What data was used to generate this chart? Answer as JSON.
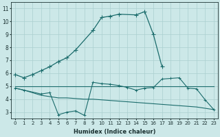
{
  "xlabel": "Humidex (Indice chaleur)",
  "bg_color": "#cce8e8",
  "grid_color": "#aacfcf",
  "line_color": "#1a6b6b",
  "ylim": [
    2.5,
    11.5
  ],
  "xlim": [
    -0.5,
    23.5
  ],
  "yticks": [
    3,
    4,
    5,
    6,
    7,
    8,
    9,
    10,
    11
  ],
  "xticks": [
    0,
    1,
    2,
    3,
    4,
    5,
    6,
    7,
    8,
    9,
    10,
    11,
    12,
    13,
    14,
    15,
    16,
    17,
    18,
    19,
    20,
    21,
    22,
    23
  ],
  "line1_x": [
    0,
    1,
    2,
    3,
    4,
    5,
    6,
    7,
    9,
    10,
    11,
    12,
    14,
    15,
    16,
    17
  ],
  "line1_y": [
    5.9,
    5.65,
    5.9,
    6.2,
    6.5,
    6.9,
    7.2,
    7.8,
    9.3,
    10.3,
    10.4,
    10.55,
    10.5,
    10.75,
    9.0,
    6.5
  ],
  "line2_x": [
    0,
    1,
    2,
    3,
    4,
    5,
    6,
    7,
    8,
    9,
    10,
    11,
    12,
    13,
    14,
    15,
    16,
    17,
    18,
    19,
    20,
    21,
    22,
    23
  ],
  "line2_y": [
    5.0,
    5.0,
    5.0,
    5.0,
    5.0,
    5.0,
    5.0,
    5.0,
    5.0,
    5.0,
    5.0,
    5.0,
    5.0,
    5.0,
    5.0,
    5.0,
    5.0,
    5.0,
    5.0,
    5.0,
    5.0,
    5.0,
    5.0,
    5.0
  ],
  "line3_x": [
    0,
    1,
    3,
    4,
    5,
    6,
    7,
    8,
    9,
    10,
    11,
    12,
    13,
    14,
    15,
    16,
    17,
    18,
    19,
    20,
    21,
    22,
    23
  ],
  "line3_y": [
    4.85,
    4.7,
    4.4,
    4.5,
    2.8,
    3.0,
    3.1,
    2.75,
    5.3,
    5.2,
    5.15,
    5.05,
    4.9,
    4.7,
    4.85,
    4.9,
    5.55,
    5.6,
    5.65,
    4.85,
    4.8,
    3.95,
    3.2
  ],
  "line4_x": [
    0,
    1,
    3,
    4,
    5,
    6,
    7,
    8,
    9,
    10,
    11,
    12,
    13,
    14,
    15,
    16,
    17,
    18,
    19,
    20,
    21,
    22,
    23
  ],
  "line4_y": [
    4.85,
    4.7,
    4.3,
    4.2,
    4.1,
    4.1,
    4.05,
    4.0,
    4.0,
    3.95,
    3.9,
    3.85,
    3.8,
    3.75,
    3.7,
    3.65,
    3.6,
    3.55,
    3.5,
    3.45,
    3.4,
    3.3,
    3.2
  ]
}
